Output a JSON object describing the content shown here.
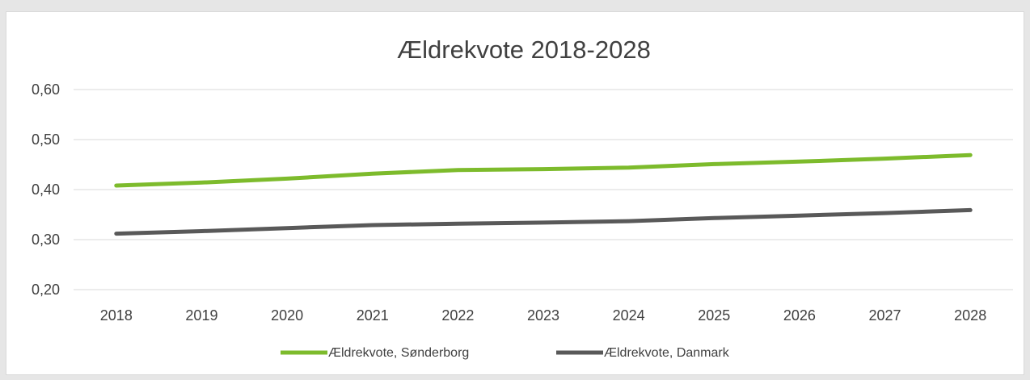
{
  "chart_data": {
    "type": "line",
    "title": "Ældrekvote 2018-2028",
    "xlabel": "",
    "ylabel": "",
    "x": [
      "2018",
      "2019",
      "2020",
      "2021",
      "2022",
      "2023",
      "2024",
      "2025",
      "2026",
      "2027",
      "2028"
    ],
    "ylim": [
      0.2,
      0.6
    ],
    "yticks": [
      "0,20",
      "0,30",
      "0,40",
      "0,50",
      "0,60"
    ],
    "ytick_values": [
      0.2,
      0.3,
      0.4,
      0.5,
      0.6
    ],
    "grid": true,
    "legend_position": "bottom",
    "series": [
      {
        "name": "Ældrekvote, Sønderborg",
        "color": "#7dbb2c",
        "values": [
          0.408,
          0.414,
          0.422,
          0.432,
          0.439,
          0.441,
          0.444,
          0.451,
          0.456,
          0.462,
          0.469
        ]
      },
      {
        "name": "Ældrekvote, Danmark",
        "color": "#595959",
        "values": [
          0.312,
          0.317,
          0.323,
          0.329,
          0.332,
          0.334,
          0.337,
          0.343,
          0.348,
          0.353,
          0.359
        ]
      }
    ]
  }
}
